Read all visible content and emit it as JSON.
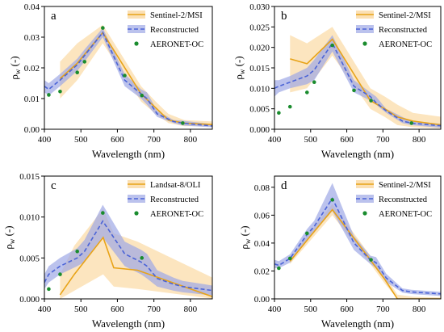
{
  "figure": {
    "xlabel": "Wavelength (nm)",
    "ylabel_main": "ρ",
    "ylabel_sub": "w",
    "ylabel_unit": "(-)"
  },
  "colors": {
    "satellite": "#e8a317",
    "satellite_band": "#fbe0b4",
    "reconstructed": "#4a63d6",
    "reconstructed_band": "#9ea8e6",
    "aeronet": "#1a8c2e",
    "axes": "#000000"
  },
  "legend_labels": {
    "reconstructed": "Reconstructed",
    "aeronet": "AERONET-OC"
  },
  "chart_data": [
    {
      "panel": "a",
      "type": "line",
      "xlim": [
        400,
        860
      ],
      "ylim": [
        0,
        0.04
      ],
      "xticks": [
        400,
        500,
        600,
        700,
        800
      ],
      "yticks": [
        0.0,
        0.01,
        0.02,
        0.03,
        0.04
      ],
      "ytick_labels": [
        "0.00",
        "0.01",
        "0.02",
        "0.03",
        "0.04"
      ],
      "xlabel": "Wavelength (nm)",
      "ylabel": "ρw (-)",
      "legend_position": "top-right",
      "satellite": {
        "name": "Sentinel-2/MSI",
        "x": [
          443,
          490,
          560,
          665,
          705,
          740,
          783,
          865
        ],
        "y": [
          0.0165,
          0.0215,
          0.0315,
          0.0115,
          0.007,
          0.003,
          0.002,
          0.0015
        ],
        "lower": [
          0.01,
          0.016,
          0.028,
          0.009,
          0.005,
          0.002,
          0.001,
          0.001
        ],
        "upper": [
          0.022,
          0.028,
          0.034,
          0.014,
          0.009,
          0.005,
          0.003,
          0.0025
        ]
      },
      "reconstructed": {
        "x": [
          400,
          412,
          443,
          490,
          510,
          560,
          620,
          665,
          681,
          709,
          754,
          779,
          865
        ],
        "y": [
          0.014,
          0.013,
          0.016,
          0.021,
          0.024,
          0.0315,
          0.016,
          0.0115,
          0.01,
          0.005,
          0.0025,
          0.002,
          0.001
        ],
        "lower": [
          0.012,
          0.011,
          0.014,
          0.019,
          0.022,
          0.03,
          0.014,
          0.01,
          0.008,
          0.004,
          0.002,
          0.0012,
          0.0006
        ],
        "upper": [
          0.016,
          0.015,
          0.018,
          0.023,
          0.026,
          0.033,
          0.018,
          0.013,
          0.012,
          0.006,
          0.003,
          0.0028,
          0.0016
        ]
      },
      "aeronet": {
        "name": "AERONET-OC",
        "x": [
          412,
          443,
          490,
          510,
          560,
          620,
          667,
          779
        ],
        "y": [
          0.0112,
          0.0123,
          0.0185,
          0.022,
          0.033,
          0.0175,
          0.011,
          0.002
        ]
      }
    },
    {
      "panel": "b",
      "type": "line",
      "xlim": [
        400,
        860
      ],
      "ylim": [
        0,
        0.03
      ],
      "xticks": [
        400,
        500,
        600,
        700,
        800
      ],
      "yticks": [
        0.0,
        0.005,
        0.01,
        0.015,
        0.02,
        0.025,
        0.03
      ],
      "ytick_labels": [
        "0.000",
        "0.005",
        "0.010",
        "0.015",
        "0.020",
        "0.025",
        "0.030"
      ],
      "xlabel": "Wavelength (nm)",
      "ylabel": "ρw (-)",
      "legend_position": "top-right",
      "satellite": {
        "name": "Sentinel-2/MSI",
        "x": [
          443,
          490,
          560,
          665,
          705,
          740,
          783,
          865
        ],
        "y": [
          0.0172,
          0.016,
          0.022,
          0.007,
          0.005,
          0.003,
          0.002,
          0.001
        ],
        "lower": [
          0.009,
          0.01,
          0.018,
          0.005,
          0.003,
          0.001,
          0.0005,
          0.0002
        ],
        "upper": [
          0.023,
          0.021,
          0.025,
          0.01,
          0.008,
          0.006,
          0.004,
          0.003
        ]
      },
      "reconstructed": {
        "x": [
          400,
          412,
          443,
          490,
          510,
          560,
          620,
          665,
          681,
          709,
          754,
          779,
          865
        ],
        "y": [
          0.01,
          0.0105,
          0.0115,
          0.013,
          0.0145,
          0.021,
          0.0105,
          0.008,
          0.0065,
          0.0045,
          0.002,
          0.0015,
          0.0008
        ],
        "lower": [
          0.008,
          0.009,
          0.01,
          0.011,
          0.012,
          0.019,
          0.009,
          0.007,
          0.006,
          0.004,
          0.0015,
          0.001,
          0.0003
        ],
        "upper": [
          0.012,
          0.012,
          0.013,
          0.015,
          0.017,
          0.023,
          0.012,
          0.009,
          0.008,
          0.005,
          0.003,
          0.002,
          0.0013
        ]
      },
      "aeronet": {
        "name": "AERONET-OC",
        "x": [
          412,
          443,
          490,
          510,
          560,
          620,
          667,
          779,
          865
        ],
        "y": [
          0.004,
          0.0055,
          0.009,
          0.0115,
          0.0205,
          0.0095,
          0.007,
          0.0015,
          0.0008
        ]
      }
    },
    {
      "panel": "c",
      "type": "line",
      "xlim": [
        400,
        860
      ],
      "ylim": [
        0,
        0.015
      ],
      "xticks": [
        400,
        500,
        600,
        700,
        800
      ],
      "yticks": [
        0.0,
        0.005,
        0.01,
        0.015
      ],
      "ytick_labels": [
        "0.000",
        "0.005",
        "0.010",
        "0.015"
      ],
      "xlabel": "Wavelength (nm)",
      "ylabel": "ρw (-)",
      "legend_position": "top-right",
      "satellite": {
        "name": "Landsat-8/OLI",
        "x": [
          443,
          482,
          561,
          590,
          655,
          865
        ],
        "y": [
          0.0005,
          0.003,
          0.0075,
          0.0038,
          0.0035,
          0.0002
        ],
        "lower": [
          0.0,
          0.001,
          0.003,
          0.0015,
          0.0012,
          0.0
        ],
        "upper": [
          0.003,
          0.0065,
          0.011,
          0.008,
          0.007,
          0.0025
        ]
      },
      "reconstructed": {
        "x": [
          400,
          412,
          443,
          490,
          510,
          560,
          620,
          665,
          681,
          709,
          754,
          779,
          865
        ],
        "y": [
          0.002,
          0.003,
          0.004,
          0.005,
          0.0058,
          0.0095,
          0.0055,
          0.0045,
          0.004,
          0.0025,
          0.0018,
          0.0015,
          0.001
        ],
        "lower": [
          0.0012,
          0.002,
          0.003,
          0.004,
          0.0045,
          0.0075,
          0.004,
          0.003,
          0.0025,
          0.0015,
          0.001,
          0.0008,
          0.0004
        ],
        "upper": [
          0.003,
          0.004,
          0.005,
          0.0062,
          0.0072,
          0.0115,
          0.007,
          0.006,
          0.0055,
          0.0035,
          0.0026,
          0.0022,
          0.0016
        ]
      },
      "aeronet": {
        "name": "AERONET-OC",
        "x": [
          412,
          443,
          490,
          560,
          667,
          865
        ],
        "y": [
          0.0012,
          0.003,
          0.0058,
          0.0105,
          0.005,
          0.0003
        ]
      }
    },
    {
      "panel": "d",
      "type": "line",
      "xlim": [
        400,
        860
      ],
      "ylim": [
        0,
        0.088
      ],
      "xticks": [
        400,
        500,
        600,
        700,
        800
      ],
      "yticks": [
        0.0,
        0.02,
        0.04,
        0.06,
        0.08
      ],
      "ytick_labels": [
        "0.00",
        "0.02",
        "0.04",
        "0.06",
        "0.08"
      ],
      "xlabel": "Wavelength (nm)",
      "ylabel": "ρw (-)",
      "legend_position": "top-right",
      "satellite": {
        "name": "Sentinel-2/MSI",
        "x": [
          443,
          490,
          560,
          665,
          705,
          740,
          783,
          865
        ],
        "y": [
          0.027,
          0.042,
          0.064,
          0.028,
          0.014,
          0.0,
          0.0,
          0.0
        ],
        "lower": [
          0.025,
          0.039,
          0.06,
          0.025,
          0.011,
          0.0,
          0.0,
          0.0
        ],
        "upper": [
          0.029,
          0.045,
          0.068,
          0.031,
          0.017,
          0.003,
          0.0015,
          0.001
        ]
      },
      "reconstructed": {
        "x": [
          400,
          412,
          443,
          490,
          510,
          560,
          620,
          665,
          681,
          709,
          754,
          779,
          865
        ],
        "y": [
          0.025,
          0.024,
          0.029,
          0.046,
          0.052,
          0.072,
          0.04,
          0.028,
          0.026,
          0.015,
          0.006,
          0.005,
          0.0035
        ],
        "lower": [
          0.022,
          0.022,
          0.026,
          0.042,
          0.048,
          0.063,
          0.035,
          0.025,
          0.022,
          0.012,
          0.0045,
          0.0035,
          0.002
        ],
        "upper": [
          0.028,
          0.027,
          0.032,
          0.05,
          0.056,
          0.083,
          0.045,
          0.031,
          0.03,
          0.018,
          0.0075,
          0.0065,
          0.005
        ]
      },
      "aeronet": {
        "name": "AERONET-OC",
        "x": [
          412,
          443,
          490,
          560,
          667,
          865
        ],
        "y": [
          0.022,
          0.029,
          0.047,
          0.071,
          0.028,
          0.0035
        ]
      }
    }
  ]
}
